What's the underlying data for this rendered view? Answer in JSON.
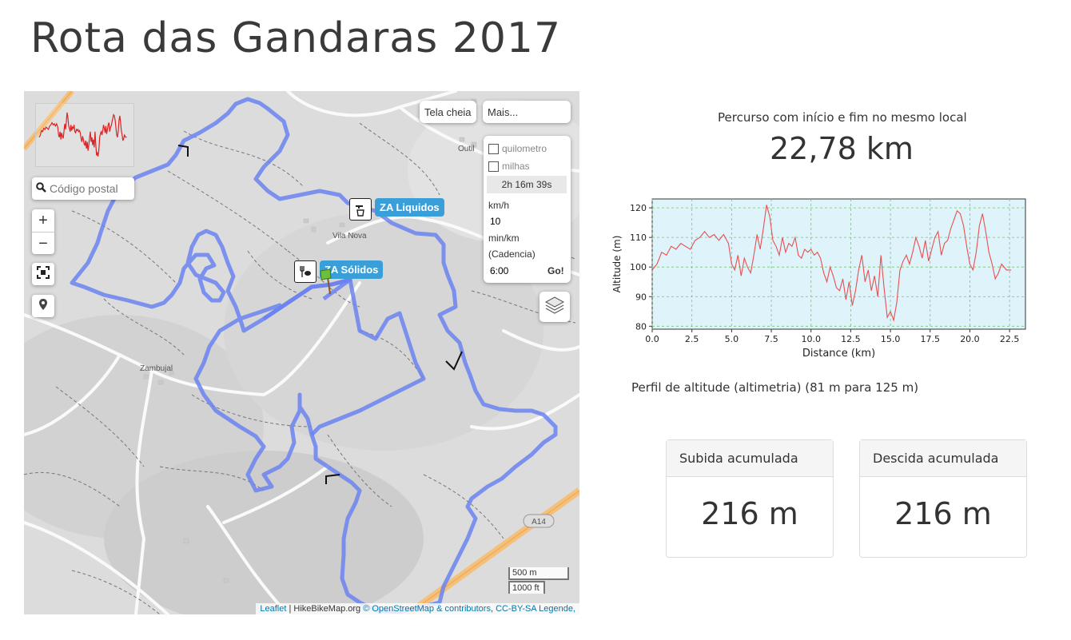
{
  "page": {
    "title": "Rota das Gandaras 2017"
  },
  "map": {
    "postal_placeholder": "Código postal",
    "zoom_in": "+",
    "zoom_out": "−",
    "fullscreen_label": "Tela cheia",
    "more_label": "Mais...",
    "units": {
      "km_label": "quilometro",
      "mi_label": "milhas",
      "km_checked": false,
      "mi_checked": false
    },
    "time": "2h 16m 39s",
    "speed_unit": "km/h",
    "speed_value": "10",
    "pace_unit": "min/km",
    "cadence_label": "(Cadencia)",
    "pace_value": "6:00",
    "go_label": "Go!",
    "pois": [
      {
        "label": "ZA Liquidos",
        "icon": "water-tap-icon"
      },
      {
        "label": "ZA Sólidos",
        "icon": "food-icon"
      }
    ],
    "places": [
      "Vila Nova",
      "Zambujal",
      "Outil"
    ],
    "road_ref": "A14",
    "scale_m": "500 m",
    "scale_ft": "1000 ft",
    "attribution": {
      "leaflet": "Leaflet",
      "hikebike": "HikeBikeMap.org",
      "osm": "© OpenStreetMap & contributors",
      "license": "CC-BY-SA",
      "legend": "Legende,"
    },
    "route_color": "#6b82f0"
  },
  "summary": {
    "loop_text": "Percurso com início e fim no mesmo local",
    "distance": "22,78 km"
  },
  "profile": {
    "caption": "Perfil de altitude (altimetria) (81 m para 125 m)",
    "line_color": "#e85050",
    "bg_color": "#dff3fb"
  },
  "stats": {
    "ascent_label": "Subida acumulada",
    "ascent_value": "216 m",
    "descent_label": "Descida acumulada",
    "descent_value": "216 m"
  },
  "chart_data": {
    "type": "line",
    "title": "",
    "xlabel": "Distance (km)",
    "ylabel": "Altitude (m)",
    "xlim": [
      0,
      23.5
    ],
    "ylim": [
      79,
      123
    ],
    "xticks": [
      0.0,
      2.5,
      5.0,
      7.5,
      10.0,
      12.5,
      15.0,
      17.5,
      20.0,
      22.5
    ],
    "yticks": [
      80,
      90,
      100,
      110,
      120
    ],
    "grid": true,
    "series": [
      {
        "x": [
          0,
          0.3,
          0.6,
          0.9,
          1.2,
          1.5,
          1.8,
          2.1,
          2.4,
          2.7,
          3.0,
          3.3,
          3.6,
          3.9,
          4.2,
          4.5,
          4.8,
          5.0,
          5.2,
          5.4,
          5.6,
          5.8,
          6.0,
          6.2,
          6.4,
          6.6,
          6.8,
          7.0,
          7.2,
          7.4,
          7.6,
          7.8,
          8.0,
          8.2,
          8.4,
          8.6,
          8.8,
          9.0,
          9.2,
          9.4,
          9.6,
          9.8,
          10.0,
          10.2,
          10.4,
          10.6,
          10.8,
          11.0,
          11.2,
          11.4,
          11.6,
          11.8,
          12.0,
          12.2,
          12.4,
          12.6,
          12.8,
          13.0,
          13.2,
          13.4,
          13.6,
          13.8,
          14.0,
          14.2,
          14.4,
          14.6,
          14.8,
          15.0,
          15.2,
          15.4,
          15.6,
          15.8,
          16.0,
          16.2,
          16.4,
          16.6,
          16.8,
          17.0,
          17.2,
          17.4,
          17.6,
          17.8,
          18.0,
          18.2,
          18.4,
          18.6,
          18.8,
          19.0,
          19.2,
          19.4,
          19.6,
          19.8,
          20.0,
          20.2,
          20.4,
          20.6,
          20.8,
          21.0,
          21.2,
          21.4,
          21.6,
          21.8,
          22.0,
          22.3,
          22.6
        ],
        "y": [
          99,
          101,
          105,
          104,
          107,
          106,
          108,
          107,
          106,
          109,
          110,
          112,
          110,
          111,
          109,
          111,
          108,
          101,
          99,
          104,
          97,
          103,
          100,
          98,
          104,
          111,
          106,
          113,
          121,
          117,
          109,
          107,
          104,
          110,
          105,
          108,
          107,
          110,
          104,
          103,
          106,
          105,
          106,
          104,
          105,
          103,
          98,
          95,
          100,
          97,
          93,
          92,
          96,
          89,
          95,
          87,
          92,
          99,
          104,
          95,
          99,
          92,
          97,
          90,
          104,
          93,
          83,
          85,
          82,
          88,
          99,
          102,
          104,
          101,
          105,
          110,
          107,
          103,
          109,
          102,
          106,
          110,
          112,
          104,
          108,
          109,
          113,
          116,
          119,
          118,
          114,
          107,
          101,
          99,
          105,
          114,
          118,
          112,
          105,
          101,
          96,
          98,
          101,
          99,
          99
        ]
      }
    ]
  }
}
